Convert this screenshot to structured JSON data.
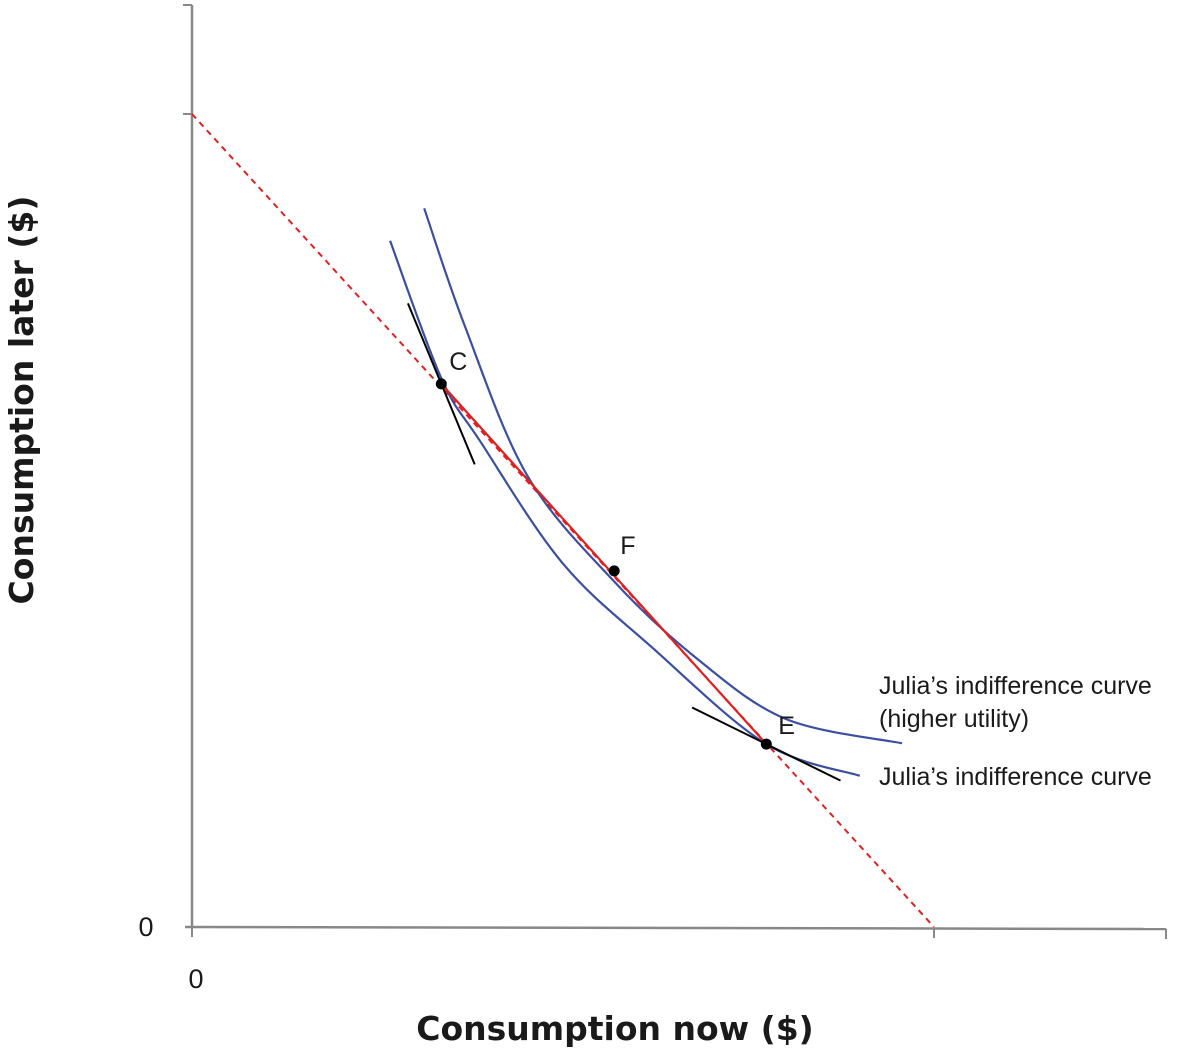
{
  "chart_data": {
    "type": "line",
    "xlabel": "Consumption now ($)",
    "ylabel": "Consumption later ($)",
    "xlim": [
      0,
      100
    ],
    "ylim": [
      0,
      100
    ],
    "x_tick_labels": [
      "0"
    ],
    "y_tick_labels": [
      "0"
    ],
    "grid": false,
    "series": [
      {
        "name": "Julia’s indifference curve",
        "color": "#3a4fa0",
        "points": [
          [
            26.7,
            84.4
          ],
          [
            33.6,
            67.5
          ],
          [
            38.8,
            59.8
          ],
          [
            49.9,
            44.8
          ],
          [
            62.1,
            34.3
          ],
          [
            77.4,
            22.5
          ],
          [
            90.0,
            18.6
          ]
        ]
      },
      {
        "name": "Julia’s indifference curve\n(higher utility)",
        "label_lines": [
          "Julia’s indifference curve",
          "(higher utility)"
        ],
        "color": "#3a4fa0",
        "points": [
          [
            31.3,
            88.4
          ],
          [
            36.7,
            74.1
          ],
          [
            45.2,
            55.5
          ],
          [
            56.9,
            42.5
          ],
          [
            67.8,
            33.2
          ],
          [
            80.0,
            25.6
          ],
          [
            95.7,
            22.6
          ]
        ]
      }
    ],
    "budget_line": {
      "color": "#e02020",
      "points": [
        [
          0,
          100
        ],
        [
          100,
          0
        ]
      ],
      "solid_segment": "C to E"
    },
    "points": [
      {
        "label": "C",
        "x": 33.6,
        "y": 66.8
      },
      {
        "label": "F",
        "x": 56.9,
        "y": 43.8
      },
      {
        "label": "E",
        "x": 77.4,
        "y": 22.5
      }
    ],
    "tangents": [
      {
        "at": "C",
        "slope": -2.2,
        "color": "#000000"
      },
      {
        "at": "E",
        "slope": -0.45,
        "color": "#000000"
      }
    ]
  }
}
